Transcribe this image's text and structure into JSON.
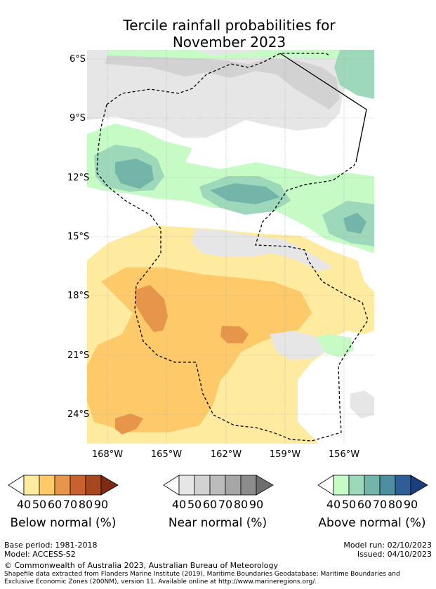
{
  "title_line1": "Tercile rainfall probabilities for",
  "title_line2": "November 2023",
  "lat_labels": [
    "6°S",
    "9°S",
    "12°S",
    "15°S",
    "18°S",
    "21°S",
    "24°S"
  ],
  "lon_labels": [
    "168°W",
    "165°W",
    "162°W",
    "159°W",
    "156°W"
  ],
  "colorbars": [
    {
      "title": "Below normal (%)",
      "ticks": [
        "40",
        "50",
        "60",
        "70",
        "80",
        "90"
      ],
      "colors": [
        "#ffffff",
        "#ffeb9f",
        "#fdc969",
        "#e6954a",
        "#c9612e",
        "#a7471f",
        "#7f2a12"
      ]
    },
    {
      "title": "Near normal (%)",
      "ticks": [
        "40",
        "50",
        "60",
        "70",
        "80",
        "90"
      ],
      "colors": [
        "#ffffff",
        "#e6e6e6",
        "#d2d2d2",
        "#bcbcbc",
        "#a6a6a6",
        "#8c8c8c",
        "#6e6e6e"
      ]
    },
    {
      "title": "Above normal (%)",
      "ticks": [
        "40",
        "50",
        "60",
        "70",
        "80",
        "90"
      ],
      "colors": [
        "#ffffff",
        "#c6fbc6",
        "#9ed8bb",
        "#73b5a8",
        "#4d8fa0",
        "#2e5e95",
        "#1a3f7c"
      ]
    }
  ],
  "footer": {
    "base_period": "Base period: 1981-2018",
    "model": "Model: ACCESS-S2",
    "model_run": "Model run: 02/10/2023",
    "issued": "Issued: 04/10/2023",
    "copyright": "© Commonwealth of Australia 2023, Australian Bureau of Meteorology",
    "shapefile_line1": "Shapefile data extracted from Flanders Marine Institute (2019), Maritime Boundaries Geodatabase: Maritime Boundaries and",
    "shapefile_line2": "Exclusive Economic Zones (200NM), version 11. Available online at http://www.marineregions.org/."
  }
}
